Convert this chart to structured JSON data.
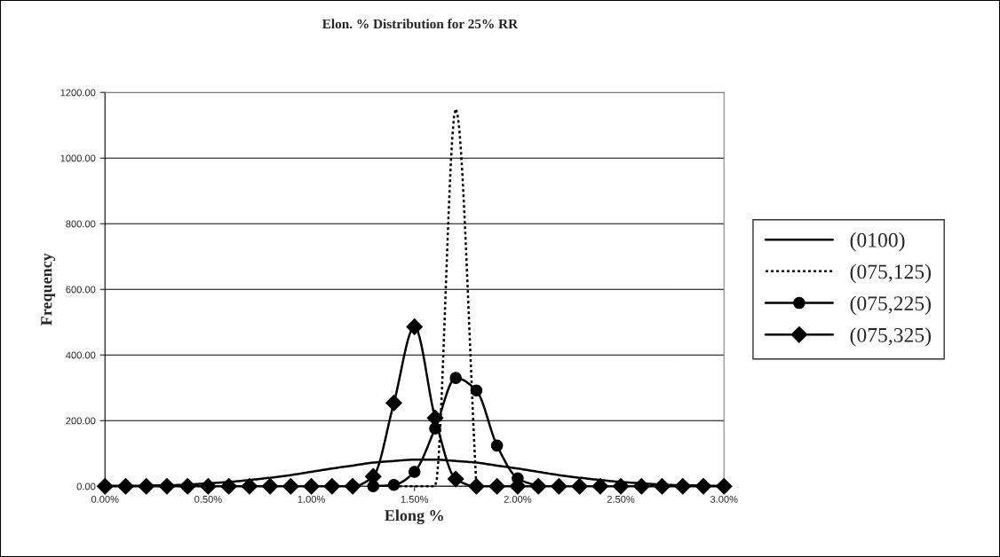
{
  "chart_data": {
    "type": "line",
    "title": "Elon. % Distribution for 25% RR",
    "xlabel": "Elong %",
    "ylabel": "Frequency",
    "x": [
      0,
      0.1,
      0.2,
      0.3,
      0.4,
      0.5,
      0.6,
      0.7,
      0.8,
      0.9,
      1.0,
      1.1,
      1.2,
      1.3,
      1.4,
      1.5,
      1.6,
      1.7,
      1.8,
      1.9,
      2.0,
      2.1,
      2.2,
      2.3,
      2.4,
      2.5,
      2.6,
      2.7,
      2.8,
      2.9,
      3.0
    ],
    "series": [
      {
        "name": "(0100)",
        "color": "#000000",
        "marker": "none",
        "line_style": "solid",
        "values": [
          1,
          1,
          2,
          3,
          5,
          9,
          13,
          19,
          26,
          34,
          44,
          54,
          63,
          72,
          77,
          81,
          81,
          77,
          72,
          63,
          54,
          44,
          34,
          26,
          19,
          13,
          9,
          5,
          3,
          2,
          1
        ]
      },
      {
        "name": "(075,125)",
        "color": "#000000",
        "marker": "none",
        "line_style": "dotted",
        "x": [
          1.4,
          1.5,
          1.6,
          1.7,
          1.8
        ],
        "values": [
          0,
          0,
          0,
          1150,
          0
        ]
      },
      {
        "name": "(075,225)",
        "color": "#000000",
        "marker": "circle",
        "line_style": "solid",
        "x": [
          1.3,
          1.4,
          1.5,
          1.6,
          1.7,
          1.8,
          1.9,
          2.0,
          2.1
        ],
        "values": [
          0,
          4,
          44,
          176,
          330,
          292,
          124,
          24,
          0
        ]
      },
      {
        "name": "(075,325)",
        "color": "#000000",
        "marker": "diamond",
        "line_style": "solid",
        "values": [
          0,
          0,
          0,
          0,
          0,
          0,
          0,
          0,
          0,
          0,
          0,
          0,
          0,
          30,
          254,
          486,
          208,
          22,
          0,
          0,
          0,
          0,
          0,
          0,
          0,
          0,
          0,
          0,
          0,
          0,
          0
        ]
      }
    ],
    "xlim": [
      0,
      3
    ],
    "xticks": [
      {
        "value": 0,
        "label": "0.00%"
      },
      {
        "value": 0.5,
        "label": "0.50%"
      },
      {
        "value": 1.0,
        "label": "1.00%"
      },
      {
        "value": 1.5,
        "label": "1.50%"
      },
      {
        "value": 2.0,
        "label": "2.00%"
      },
      {
        "value": 2.5,
        "label": "2.50%"
      },
      {
        "value": 3.0,
        "label": "3.00%"
      }
    ],
    "ylim": [
      0,
      1200
    ],
    "yticks": [
      {
        "value": 0,
        "label": "0.00"
      },
      {
        "value": 200,
        "label": "200.00"
      },
      {
        "value": 400,
        "label": "400.00"
      },
      {
        "value": 600,
        "label": "600.00"
      },
      {
        "value": 800,
        "label": "800.00"
      },
      {
        "value": 1000,
        "label": "1000.00"
      },
      {
        "value": 1200,
        "label": "1200.00"
      }
    ],
    "grid": "y",
    "legend": "right"
  }
}
